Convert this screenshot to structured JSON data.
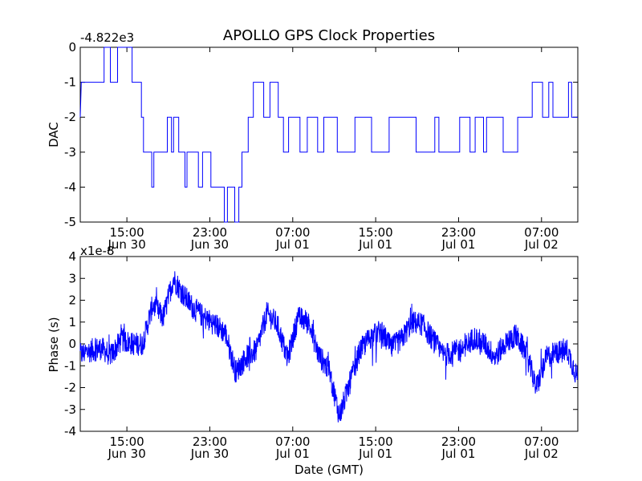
{
  "chart_data": [
    {
      "type": "line",
      "title": "APOLLO GPS Clock Properties",
      "xlabel": "",
      "ylabel": "DAC",
      "y_offset_label": "-4.822e3",
      "ylim": [
        -5,
        0
      ],
      "yticks": [
        0,
        -1,
        -2,
        -3,
        -4,
        -5
      ],
      "ytick_labels": [
        "0",
        "-1",
        "-2",
        "-3",
        "-4",
        "-5"
      ],
      "xlim_hours": [
        10.5,
        58.5
      ],
      "xticks_hours": [
        15,
        23,
        31,
        39,
        47,
        55
      ],
      "xtick_labels": [
        [
          "15:00",
          "Jun 30"
        ],
        [
          "23:00",
          "Jun 30"
        ],
        [
          "07:00",
          "Jul 01"
        ],
        [
          "15:00",
          "Jul 01"
        ],
        [
          "23:00",
          "Jul 01"
        ],
        [
          "07:00",
          "Jul 02"
        ]
      ],
      "series": [
        {
          "name": "DAC",
          "color": "#0000ff",
          "x_hours": [
            10.5,
            10.6,
            12.8,
            12.8,
            13.4,
            13.4,
            14.1,
            14.1,
            15.5,
            15.5,
            16.4,
            16.4,
            16.6,
            16.6,
            17.2,
            17.2,
            17.4,
            17.4,
            17.6,
            17.6,
            18.9,
            18.9,
            19.3,
            19.3,
            19.5,
            19.5,
            20.0,
            20.0,
            20.6,
            20.6,
            20.8,
            20.8,
            21.9,
            21.9,
            22.3,
            22.3,
            23.1,
            23.1,
            24.4,
            24.4,
            24.7,
            24.7,
            25.4,
            25.4,
            25.8,
            25.8,
            26.1,
            26.1,
            26.7,
            26.7,
            27.2,
            27.2,
            28.2,
            28.2,
            28.8,
            28.8,
            29.6,
            29.6,
            30.1,
            30.1,
            30.6,
            30.6,
            31.7,
            31.7,
            32.4,
            32.4,
            33.4,
            33.4,
            34.0,
            34.0,
            35.3,
            35.3,
            37.0,
            37.0,
            38.6,
            38.6,
            40.3,
            40.3,
            42.9,
            42.9,
            44.7,
            44.7,
            45.1,
            45.1,
            47.1,
            47.1,
            48.1,
            48.1,
            48.6,
            48.6,
            49.4,
            49.4,
            49.7,
            49.7,
            51.3,
            51.3,
            52.7,
            52.7,
            54.1,
            54.1,
            55.1,
            55.1,
            55.7,
            55.7,
            56.1,
            56.1,
            57.6,
            57.6,
            57.9,
            57.9,
            58.5
          ],
          "y": [
            -2,
            -1,
            -1,
            0,
            0,
            -1,
            -1,
            0,
            0,
            -1,
            -1,
            -2,
            -2,
            -3,
            -3,
            -3,
            -3,
            -4,
            -4,
            -3,
            -3,
            -2,
            -2,
            -3,
            -3,
            -2,
            -2,
            -3,
            -3,
            -4,
            -4,
            -3,
            -3,
            -4,
            -4,
            -3,
            -3,
            -4,
            -4,
            -5,
            -5,
            -4,
            -4,
            -5,
            -5,
            -4,
            -4,
            -3,
            -3,
            -2,
            -2,
            -1,
            -1,
            -2,
            -2,
            -1,
            -1,
            -2,
            -2,
            -3,
            -3,
            -2,
            -2,
            -3,
            -3,
            -2,
            -2,
            -3,
            -3,
            -2,
            -2,
            -3,
            -3,
            -2,
            -2,
            -3,
            -3,
            -2,
            -2,
            -3,
            -3,
            -2,
            -2,
            -3,
            -3,
            -2,
            -2,
            -3,
            -3,
            -2,
            -2,
            -3,
            -3,
            -2,
            -2,
            -3,
            -3,
            -2,
            -2,
            -1,
            -1,
            -2,
            -2,
            -1,
            -1,
            -2,
            -2,
            -1,
            -1,
            -2,
            -2
          ],
          "note": "step trace; values approximate, read from gridlines"
        }
      ]
    },
    {
      "type": "line",
      "title": "",
      "xlabel": "Date (GMT)",
      "ylabel": "Phase (s)",
      "y_offset_label": "x1e-8",
      "ylim": [
        -4,
        4
      ],
      "yticks": [
        4,
        3,
        2,
        1,
        0,
        -1,
        -2,
        -3,
        -4
      ],
      "ytick_labels": [
        "4",
        "3",
        "2",
        "1",
        "0",
        "-1",
        "-2",
        "-3",
        "-4"
      ],
      "xlim_hours": [
        10.5,
        58.5
      ],
      "xticks_hours": [
        15,
        23,
        31,
        39,
        47,
        55
      ],
      "xtick_labels": [
        [
          "15:00",
          "Jun 30"
        ],
        [
          "23:00",
          "Jun 30"
        ],
        [
          "07:00",
          "Jul 01"
        ],
        [
          "15:00",
          "Jul 01"
        ],
        [
          "23:00",
          "Jul 01"
        ],
        [
          "07:00",
          "Jul 02"
        ]
      ],
      "series": [
        {
          "name": "Phase",
          "color": "#0000ff",
          "x_hours": [
            10.5,
            11.5,
            12.5,
            13.5,
            14.5,
            15.5,
            16.5,
            17.5,
            18.5,
            19.5,
            20.5,
            21.5,
            22.5,
            23.5,
            24.5,
            25.5,
            26.5,
            27.5,
            28.5,
            29.5,
            30.5,
            31.5,
            32.5,
            33.5,
            34.5,
            35.5,
            36.5,
            37.5,
            38.5,
            39.5,
            40.5,
            41.5,
            42.5,
            43.5,
            44.5,
            45.5,
            46.5,
            47.5,
            48.5,
            49.5,
            50.5,
            51.5,
            52.5,
            53.5,
            54.5,
            55.5,
            56.5,
            57.5,
            58.5
          ],
          "y": [
            -0.5,
            -0.3,
            -0.2,
            -0.5,
            0.2,
            0.0,
            0.0,
            1.8,
            1.2,
            3.0,
            2.2,
            1.6,
            1.2,
            0.9,
            0.5,
            -1.3,
            -0.6,
            -0.3,
            1.4,
            0.9,
            -0.7,
            1.2,
            1.0,
            -0.5,
            -1.2,
            -3.3,
            -1.8,
            -0.3,
            0.3,
            0.6,
            -0.2,
            0.2,
            1.0,
            0.9,
            0.2,
            -0.5,
            -0.4,
            -0.2,
            0.3,
            0.0,
            -0.6,
            0.0,
            0.4,
            -0.4,
            -2.0,
            -0.6,
            -0.4,
            -0.3,
            -1.6
          ],
          "note": "noisy trace; envelope approximate"
        }
      ]
    }
  ]
}
